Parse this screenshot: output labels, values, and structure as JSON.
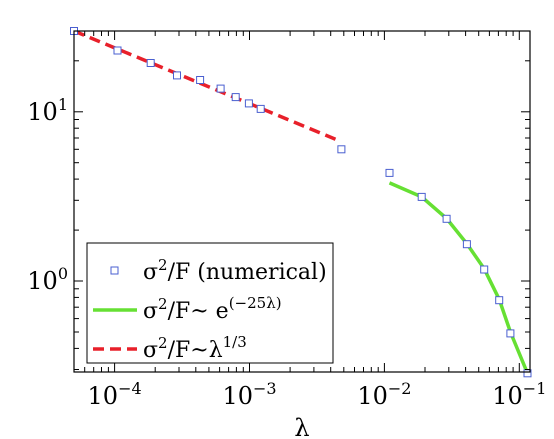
{
  "chart_data": {
    "type": "scatter",
    "xscale": "log",
    "yscale": "log",
    "xlim": [
      5e-05,
      0.12
    ],
    "ylim": [
      0.29,
      30
    ],
    "grid": false,
    "legend_position": "bottom-left",
    "xlabel": "λ",
    "ylabel": "",
    "x_ticks": [
      {
        "value": 0.0001,
        "base": "10",
        "exp": "−4"
      },
      {
        "value": 0.001,
        "base": "10",
        "exp": "−3"
      },
      {
        "value": 0.01,
        "base": "10",
        "exp": "−2"
      },
      {
        "value": 0.1,
        "base": "10",
        "exp": "−1"
      }
    ],
    "y_ticks": [
      {
        "value": 1,
        "base": "10",
        "exp": "0"
      },
      {
        "value": 10,
        "base": "10",
        "exp": "1"
      }
    ],
    "series": [
      {
        "name": "σ2/F (numerical)",
        "legend_main": "σ",
        "legend_sup": "2",
        "legend_rest": "/F (numerical)",
        "kind": "markers",
        "color": "#4a5fd0",
        "x": [
          5e-05,
          0.000105,
          0.000185,
          0.00029,
          0.00043,
          0.00061,
          0.00079,
          0.00099,
          0.00121,
          0.0048,
          0.0109,
          0.0189,
          0.0289,
          0.0409,
          0.0549,
          0.0709,
          0.0859,
          0.115
        ],
        "y": [
          30,
          23,
          19.4,
          16.4,
          15.4,
          13.7,
          12.2,
          11.2,
          10.4,
          6.0,
          4.35,
          3.14,
          2.33,
          1.65,
          1.17,
          0.77,
          0.49,
          0.285
        ]
      },
      {
        "name": "σ2/F~ e(−25λ)",
        "legend_main": "σ",
        "legend_sup": "2",
        "legend_rest": "/F~ e",
        "legend_sup2": "(−25λ)",
        "kind": "line",
        "color": "#66e033",
        "x": [
          0.0109,
          0.0189,
          0.0289,
          0.0409,
          0.0549,
          0.0709,
          0.0859,
          0.115
        ],
        "y": [
          3.8,
          3.14,
          2.34,
          1.66,
          1.18,
          0.78,
          0.5,
          0.285
        ]
      },
      {
        "name": "σ2/F~λ1/3",
        "legend_main": "σ",
        "legend_sup": "2",
        "legend_rest": "/F~λ",
        "legend_sup2": "1/3",
        "kind": "dashed-line",
        "color": "#e8202a",
        "x": [
          5e-05,
          0.0045
        ],
        "y": [
          30,
          6.8
        ]
      }
    ]
  }
}
